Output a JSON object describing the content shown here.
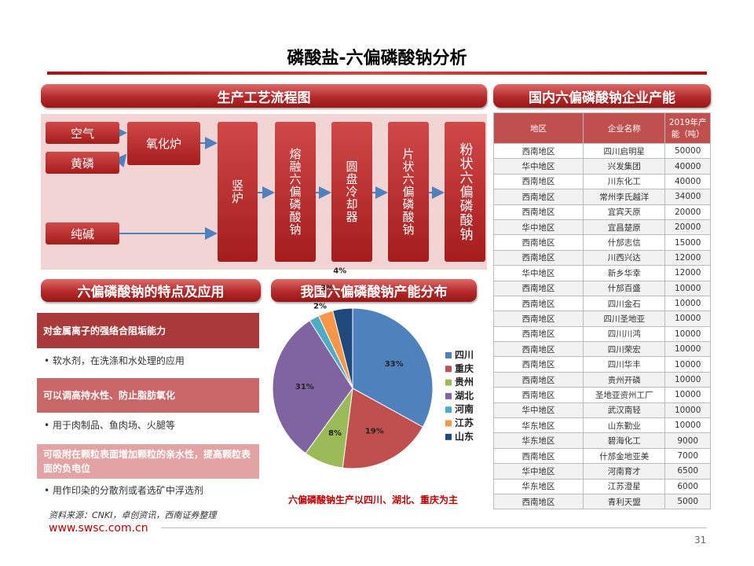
{
  "header": {
    "title": "磷酸盐-六偏磷酸钠分析"
  },
  "banners": {
    "flow": "生产工艺流程图",
    "capacity": "国内六偏磷酸钠企业产能",
    "features": "六偏磷酸钠的特点及应用",
    "distribution": "我国六偏磷酸钠产能分布"
  },
  "flow": {
    "nodes": [
      "空气",
      "黄磷",
      "纯碱",
      "氧化炉",
      "竖炉",
      "熔融六偏磷酸钠",
      "圆盘冷却器",
      "片状六偏磷酸钠",
      "粉状六偏磷酸钠"
    ]
  },
  "features": [
    {
      "title": "对金属离子的强络合阻垢能力",
      "use": "• 软水剂，在洗涤和水处理的应用"
    },
    {
      "title": "可以调高持水性、防止脂肪氧化",
      "use": "• 用于肉制品、鱼肉场、火腿等"
    },
    {
      "title": "可吸附在颗粒表面增加颗粒的亲水性，提高颗粒表面的负电位",
      "use": "• 用作印染的分散剂或者选矿中浮选剂"
    }
  ],
  "chart_data": {
    "type": "pie",
    "categories": [
      "四川",
      "重庆",
      "贵州",
      "湖北",
      "河南",
      "江苏",
      "山东"
    ],
    "values": [
      33,
      19,
      8,
      31,
      2,
      3,
      4
    ],
    "value_labels": [
      "33%",
      "19%",
      "8%",
      "31%",
      "2%",
      "3%",
      "4%"
    ],
    "colors": [
      "#4f81bd",
      "#c0504d",
      "#9bbb59",
      "#8064a2",
      "#4bacc6",
      "#f79646",
      "#1f497d"
    ],
    "caption": "六偏磷酸钠生产以四川、湖北、重庆为主"
  },
  "table": {
    "header": [
      "地区",
      "企业名称",
      "2019年产能（吨）"
    ],
    "rows": [
      [
        "西南地区",
        "四川启明星",
        50000
      ],
      [
        "华中地区",
        "兴发集团",
        40000
      ],
      [
        "西南地区",
        "川东化工",
        40000
      ],
      [
        "西南地区",
        "常州李氏越洋",
        34000
      ],
      [
        "西南地区",
        "宜宾天原",
        20000
      ],
      [
        "华中地区",
        "宜昌楚原",
        20000
      ],
      [
        "西南地区",
        "什邡志信",
        15000
      ],
      [
        "西南地区",
        "川西兴达",
        12000
      ],
      [
        "华中地区",
        "新乡华幸",
        12000
      ],
      [
        "西南地区",
        "什邡百盛",
        10000
      ],
      [
        "西南地区",
        "四川金石",
        10000
      ],
      [
        "西南地区",
        "四川圣地亚",
        10000
      ],
      [
        "西南地区",
        "四川川鸿",
        10000
      ],
      [
        "西南地区",
        "四川荣宏",
        10000
      ],
      [
        "西南地区",
        "四川华丰",
        10000
      ],
      [
        "西南地区",
        "贵州开磷",
        10000
      ],
      [
        "西南地区",
        "圣地亚资州工厂",
        10000
      ],
      [
        "华中地区",
        "武汉南轻",
        10000
      ],
      [
        "华东地区",
        "山东勤业",
        10000
      ],
      [
        "华东地区",
        "碧海化工",
        9000
      ],
      [
        "西南地区",
        "什邡金地亚美",
        7000
      ],
      [
        "华中地区",
        "河南育才",
        6500
      ],
      [
        "华东地区",
        "江苏澄星",
        6000
      ],
      [
        "西南地区",
        "青利天盟",
        5000
      ]
    ]
  },
  "footer": {
    "source": "资料来源：CNKI，卓创资讯，西南证券整理",
    "site": "www.swsc.com.cn",
    "page": "31"
  }
}
